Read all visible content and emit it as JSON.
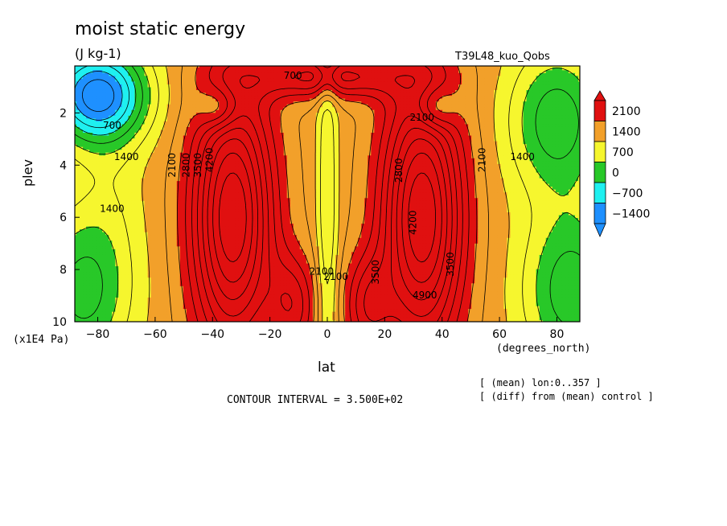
{
  "header": {
    "title": "moist static energy",
    "units": "(J kg-1)",
    "run": "T39L48_kuo_Qobs"
  },
  "footer": {
    "contour_interval": "CONTOUR INTERVAL = 3.500E+02",
    "note_mean": "[ (mean) lon:0..357 ]",
    "note_diff": "[ (diff) from (mean) control ]"
  },
  "chart_data": {
    "type": "heatmap",
    "title": "moist static energy",
    "subtitle": "(J kg-1)",
    "xlabel": "lat",
    "xunit": "(degrees_north)",
    "ylabel": "plev",
    "yunit": "(x1E4 Pa)",
    "xlim": [
      -88,
      88
    ],
    "ylim": [
      0.2,
      10
    ],
    "y_inverted": true,
    "x_ticks": [
      -80,
      -60,
      -40,
      -20,
      0,
      20,
      40,
      60,
      80
    ],
    "y_ticks": [
      2,
      4,
      6,
      8,
      10
    ],
    "legend": {
      "position": "right",
      "labels": [
        "2100",
        "1400",
        "700",
        "0",
        "-700",
        "-1400"
      ],
      "colors": [
        "#e01010",
        "#f2a02a",
        "#f6f62e",
        "#28c828",
        "#1ff0f0",
        "#1e90ff"
      ]
    },
    "color_levels": [
      {
        "min": 2100,
        "color": "#e01010"
      },
      {
        "min": 1400,
        "color": "#f2a02a"
      },
      {
        "min": 700,
        "color": "#f6f62e"
      },
      {
        "min": 0,
        "color": "#28c828"
      },
      {
        "min": -700,
        "color": "#1ff0f0"
      },
      {
        "min": -1400,
        "color": "#1e90ff"
      }
    ],
    "contour_interval": 350,
    "contour_labels": [
      {
        "text": "700",
        "lat": -75,
        "plev": 2.6
      },
      {
        "text": "1400",
        "lat": -70,
        "plev": 3.8
      },
      {
        "text": "1400",
        "lat": -75,
        "plev": 5.8
      },
      {
        "text": "2100",
        "lat": -53,
        "plev": 4.0
      },
      {
        "text": "2800",
        "lat": -48,
        "plev": 4.0
      },
      {
        "text": "3500",
        "lat": -44,
        "plev": 4.0
      },
      {
        "text": "4200",
        "lat": -40,
        "plev": 3.8
      },
      {
        "text": "700",
        "lat": -12,
        "plev": 0.7
      },
      {
        "text": "2100",
        "lat": 33,
        "plev": 2.3
      },
      {
        "text": "2800",
        "lat": 26,
        "plev": 4.2
      },
      {
        "text": "4200",
        "lat": 31,
        "plev": 6.2
      },
      {
        "text": "3500",
        "lat": 18,
        "plev": 8.1
      },
      {
        "text": "4900",
        "lat": 34,
        "plev": 9.1
      },
      {
        "text": "3500",
        "lat": 44,
        "plev": 7.8
      },
      {
        "text": "2100",
        "lat": 55,
        "plev": 3.8
      },
      {
        "text": "1400",
        "lat": 68,
        "plev": 3.8
      },
      {
        "text": "2100",
        "lat": -2,
        "plev": 8.2
      },
      {
        "text": "2100",
        "lat": 3,
        "plev": 8.4
      }
    ]
  }
}
